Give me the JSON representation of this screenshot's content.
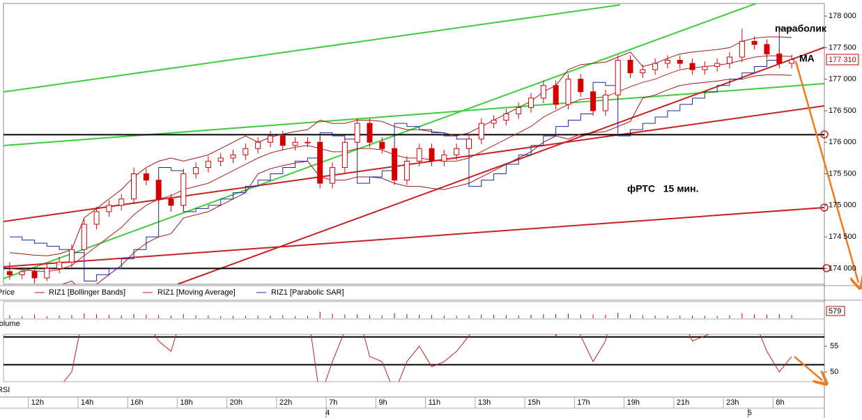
{
  "chart_data": {
    "type": "candlestick",
    "annotations": [
      "параболик",
      "МА",
      "фРТС   15 мин."
    ],
    "legend": [
      "Price",
      "RIZ1 [Bollinger Bands]",
      "RIZ1 [Moving Average]",
      "RIZ1 [Parabolic SAR]"
    ],
    "panel_labels": [
      "Volume",
      "RSI"
    ],
    "last_price": {
      "value": 177310,
      "label": "177 310"
    },
    "categories": [
      null,
      null,
      "12h",
      null,
      null,
      null,
      "14h",
      null,
      null,
      null,
      "16h",
      null,
      null,
      null,
      "18h",
      null,
      null,
      null,
      "20h",
      null,
      null,
      null,
      "22h",
      null,
      null,
      null,
      "7h",
      null,
      null,
      null,
      "9h",
      null,
      null,
      null,
      "11h",
      null,
      null,
      null,
      "13h",
      null,
      null,
      null,
      "15h",
      null,
      null,
      null,
      "17h",
      null,
      null,
      null,
      "19h",
      null,
      null,
      null,
      "21h",
      null,
      null,
      null,
      "23h",
      null,
      null,
      null,
      "8h",
      null
    ],
    "days": [
      null,
      null,
      null,
      null,
      null,
      null,
      null,
      null,
      null,
      null,
      null,
      null,
      null,
      null,
      null,
      null,
      null,
      null,
      null,
      null,
      null,
      null,
      null,
      null,
      null,
      null,
      "4",
      null,
      null,
      null,
      null,
      null,
      null,
      null,
      null,
      null,
      null,
      null,
      null,
      null,
      null,
      null,
      null,
      null,
      null,
      null,
      null,
      null,
      null,
      null,
      null,
      null,
      null,
      null,
      null,
      null,
      null,
      null,
      null,
      null,
      "5",
      null,
      null,
      null
    ],
    "open": [
      173950,
      173900,
      173950,
      173850,
      174000,
      174100,
      174300,
      174700,
      174900,
      175000,
      175100,
      175500,
      175400,
      175100,
      175000,
      175500,
      175600,
      175700,
      175750,
      175800,
      175900,
      176000,
      176100,
      175950,
      176000,
      176000,
      175350,
      175600,
      176000,
      176300,
      176000,
      175900,
      175400,
      175700,
      175900,
      175700,
      175800,
      175900,
      176050,
      176300,
      176350,
      176450,
      176550,
      176700,
      176900,
      176600,
      177000,
      176800,
      176500,
      176750,
      177300,
      177100,
      177150,
      177250,
      177300,
      177250,
      177150,
      177200,
      177250,
      177350,
      177600,
      177550,
      177400,
      177250
    ],
    "high": [
      174100,
      174020,
      174000,
      174080,
      174180,
      174380,
      174780,
      174980,
      175080,
      175180,
      175600,
      175580,
      175480,
      175180,
      175580,
      175680,
      175780,
      175830,
      175880,
      175980,
      176080,
      176180,
      176180,
      176080,
      176080,
      176080,
      175680,
      176080,
      176380,
      176380,
      176080,
      175980,
      175780,
      175980,
      175980,
      175880,
      175980,
      176130,
      176380,
      176430,
      176530,
      176630,
      176780,
      176980,
      176980,
      177080,
      177080,
      176880,
      176830,
      177380,
      177380,
      177230,
      177330,
      177380,
      177380,
      177330,
      177280,
      177330,
      177430,
      177800,
      177680,
      177630,
      177480,
      177390
    ],
    "low": [
      173820,
      173830,
      173760,
      173800,
      173920,
      174020,
      174220,
      174620,
      174820,
      174920,
      175020,
      175320,
      175020,
      174900,
      174920,
      175420,
      175520,
      175620,
      175670,
      175720,
      175820,
      175920,
      175870,
      175870,
      175920,
      175270,
      175270,
      175520,
      175920,
      175920,
      175820,
      175320,
      175320,
      175620,
      175620,
      175620,
      175720,
      175820,
      175970,
      176220,
      176270,
      176370,
      176470,
      176620,
      176520,
      176520,
      176720,
      176420,
      176420,
      176670,
      177020,
      177020,
      177070,
      177170,
      177170,
      177070,
      177070,
      177120,
      177170,
      177270,
      177470,
      177320,
      177170,
      177170
    ],
    "close": [
      173900,
      173950,
      173850,
      174000,
      174100,
      174300,
      174700,
      174900,
      175000,
      175100,
      175500,
      175400,
      175100,
      175000,
      175500,
      175600,
      175700,
      175750,
      175800,
      175900,
      176000,
      176100,
      175950,
      176000,
      176000,
      175350,
      175600,
      176000,
      176300,
      176000,
      175900,
      175400,
      175700,
      175900,
      175700,
      175800,
      175900,
      176050,
      176300,
      176350,
      176450,
      176550,
      176700,
      176900,
      176600,
      177000,
      176800,
      176500,
      176750,
      177300,
      177100,
      177150,
      177250,
      177300,
      177250,
      177150,
      177200,
      177250,
      177350,
      177600,
      177550,
      177400,
      177250,
      177310
    ],
    "candle_color": "#d40000",
    "series": [
      {
        "name": "RIZ1 [Moving Average]",
        "color": "#b02020",
        "values": [
          174000,
          173980,
          173960,
          173950,
          173980,
          174050,
          174200,
          174350,
          174500,
          174650,
          174850,
          175000,
          175100,
          175150,
          175250,
          175300,
          175350,
          175450,
          175550,
          175650,
          175750,
          175830,
          175880,
          175920,
          175950,
          175900,
          175850,
          175850,
          175900,
          175900,
          175880,
          175800,
          175750,
          175750,
          175720,
          175700,
          175700,
          175750,
          175850,
          175950,
          176050,
          176150,
          176250,
          176400,
          176500,
          176600,
          176680,
          176700,
          176720,
          176800,
          176880,
          176950,
          177000,
          177080,
          177150,
          177180,
          177200,
          177220,
          177250,
          177300,
          177350,
          177370,
          177370,
          177360
        ]
      },
      {
        "name": "RIZ1 [Bollinger Bands]",
        "color": "#a01818",
        "values": [
          174250,
          174230,
          174210,
          174200,
          174230,
          174300,
          174800,
          174950,
          175100,
          175250,
          175450,
          175600,
          175700,
          175750,
          175700,
          175750,
          175800,
          175900,
          176000,
          176100,
          176000,
          176080,
          176130,
          176170,
          176200,
          176350,
          176300,
          176300,
          176350,
          176350,
          176330,
          176250,
          176200,
          176200,
          176170,
          176150,
          176100,
          176150,
          176250,
          176350,
          176450,
          176550,
          176650,
          176800,
          176900,
          177150,
          177230,
          177250,
          177270,
          177350,
          177430,
          177200,
          177250,
          177330,
          177400,
          177430,
          177450,
          177470,
          177500,
          177600,
          177650,
          177670,
          177670,
          177660
        ]
      },
      {
        "name": "RIZ1 [Bollinger Bands]",
        "color": "#a01818",
        "values": [
          173750,
          173730,
          173710,
          173700,
          173730,
          173800,
          173600,
          173750,
          173900,
          174050,
          174250,
          174400,
          174500,
          174550,
          174800,
          174850,
          174900,
          175000,
          175100,
          175200,
          175500,
          175580,
          175630,
          175670,
          175700,
          175450,
          175400,
          175400,
          175450,
          175450,
          175430,
          175350,
          175300,
          175300,
          175270,
          175250,
          175300,
          175350,
          175450,
          175550,
          175650,
          175750,
          175850,
          176000,
          176100,
          176050,
          176130,
          176150,
          176170,
          176250,
          176330,
          176700,
          176750,
          176830,
          176900,
          176930,
          176950,
          176970,
          177000,
          177000,
          177050,
          177070,
          177070,
          177060
        ]
      },
      {
        "name": "RIZ1 [Parabolic SAR]",
        "color": "#1a2a9a",
        "values": [
          174500,
          174450,
          174400,
          174350,
          174300,
          174250,
          173800,
          173900,
          174000,
          174150,
          174300,
          174500,
          175600,
          175550,
          174900,
          174950,
          175000,
          175100,
          175200,
          175300,
          175400,
          175500,
          175600,
          175700,
          175750,
          176150,
          176100,
          176050,
          175350,
          175450,
          175550,
          176300,
          176250,
          176200,
          176150,
          176100,
          176050,
          175300,
          175400,
          175500,
          175650,
          175800,
          175950,
          176100,
          176250,
          176350,
          176450,
          176950,
          176900,
          176100,
          176200,
          176300,
          176400,
          176500,
          176600,
          176700,
          176800,
          176900,
          177000,
          177100,
          177200,
          177300,
          177800,
          177780
        ]
      }
    ],
    "ylim": [
      173750,
      178200
    ],
    "yticks": [
      {
        "value": 174000,
        "label": "174 000"
      },
      {
        "value": 174500,
        "label": "174 500"
      },
      {
        "value": 175000,
        "label": "175 000"
      },
      {
        "value": 175500,
        "label": "175 500"
      },
      {
        "value": 176000,
        "label": "176 000"
      },
      {
        "value": 176500,
        "label": "176 500"
      },
      {
        "value": 177000,
        "label": "177 000"
      },
      {
        "value": 177500,
        "label": "177 500"
      },
      {
        "value": 178000,
        "label": "178 000"
      }
    ],
    "levels": [
      176120,
      174000
    ],
    "volume": [
      120,
      80,
      150,
      90,
      110,
      130,
      200,
      160,
      140,
      120,
      180,
      150,
      130,
      100,
      170,
      120,
      110,
      90,
      100,
      95,
      105,
      110,
      120,
      90,
      100,
      260,
      180,
      150,
      160,
      130,
      120,
      210,
      170,
      140,
      130,
      110,
      100,
      120,
      150,
      140,
      130,
      120,
      140,
      160,
      170,
      190,
      150,
      160,
      140,
      220,
      150,
      120,
      110,
      100,
      105,
      110,
      100,
      95,
      120,
      200,
      160,
      150,
      170,
      130
    ],
    "volume_color": "#c00000",
    "volume_ylim": [
      0,
      579
    ],
    "volume_yticks": [
      579
    ],
    "rsi": [
      45,
      44,
      46,
      48,
      47,
      50,
      62,
      64,
      63,
      66,
      68,
      60,
      56,
      54,
      62,
      61,
      63,
      64,
      64,
      65,
      66,
      66,
      62,
      62,
      62,
      45,
      52,
      58,
      62,
      53,
      52,
      46,
      52,
      55,
      51,
      52,
      54,
      57,
      62,
      62,
      63,
      64,
      65,
      66,
      57,
      62,
      57,
      52,
      56,
      66,
      60,
      60,
      62,
      62,
      61,
      56,
      57,
      58,
      60,
      64,
      60,
      54,
      50,
      53
    ],
    "rsi_color": "#c02020",
    "rsi_ylim": [
      48.1,
      57.3
    ],
    "rsi_yticks": [
      50,
      55
    ],
    "rsi_levels": [
      56.8,
      51.4
    ]
  }
}
